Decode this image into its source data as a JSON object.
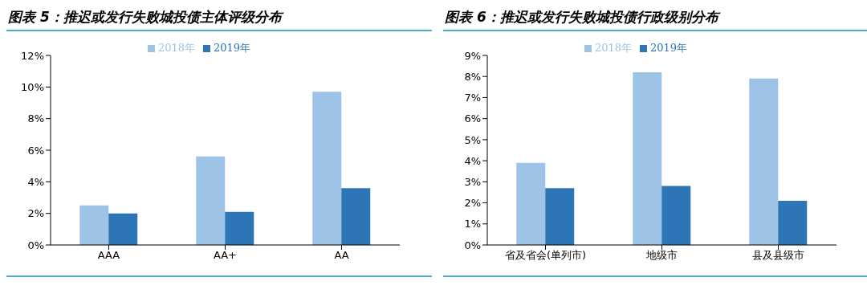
{
  "chart_data": [
    {
      "type": "bar",
      "title": "图表 5：推迟或发行失败城投债主体评级分布",
      "categories": [
        "AAA",
        "AA+",
        "AA"
      ],
      "series": [
        {
          "name": "2018年",
          "color": "#9dc3e6",
          "values": [
            2.5,
            5.6,
            9.7
          ]
        },
        {
          "name": "2019年",
          "color": "#2e75b6",
          "values": [
            2.0,
            2.1,
            3.6
          ]
        }
      ],
      "ylim": [
        0,
        12
      ],
      "yticks": [
        {
          "value": 0,
          "label": "0%"
        },
        {
          "value": 2,
          "label": "2%"
        },
        {
          "value": 4,
          "label": "4%"
        },
        {
          "value": 6,
          "label": "6%"
        },
        {
          "value": 8,
          "label": "8%"
        },
        {
          "value": 10,
          "label": "10%"
        },
        {
          "value": 12,
          "label": "12%"
        }
      ],
      "grid": false,
      "legend": "top"
    },
    {
      "type": "bar",
      "title": "图表 6：推迟或发行失败城投债行政级别分布",
      "categories": [
        "省及省会(单列市)",
        "地级市",
        "县及县级市"
      ],
      "series": [
        {
          "name": "2018年",
          "color": "#9dc3e6",
          "values": [
            3.9,
            8.2,
            7.9
          ]
        },
        {
          "name": "2019年",
          "color": "#2e75b6",
          "values": [
            2.7,
            2.8,
            2.1
          ]
        }
      ],
      "ylim": [
        0,
        9
      ],
      "yticks": [
        {
          "value": 0,
          "label": "0%"
        },
        {
          "value": 1,
          "label": "1%"
        },
        {
          "value": 2,
          "label": "2%"
        },
        {
          "value": 3,
          "label": "3%"
        },
        {
          "value": 4,
          "label": "4%"
        },
        {
          "value": 5,
          "label": "5%"
        },
        {
          "value": 6,
          "label": "6%"
        },
        {
          "value": 7,
          "label": "7%"
        },
        {
          "value": 8,
          "label": "8%"
        },
        {
          "value": 9,
          "label": "9%"
        }
      ],
      "grid": false,
      "legend": "top"
    }
  ]
}
